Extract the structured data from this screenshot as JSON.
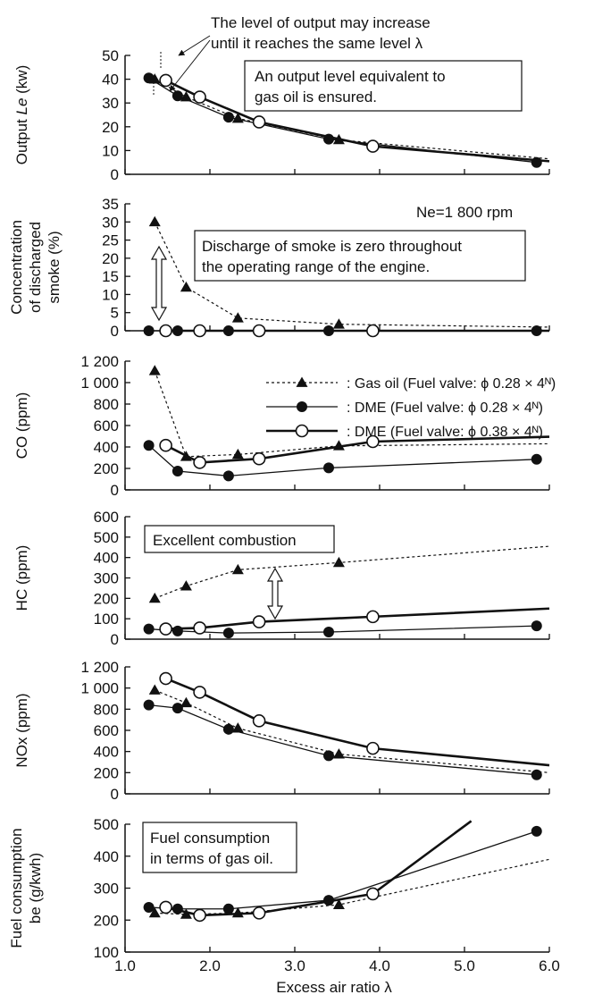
{
  "series_legend": [
    {
      "key": "gas",
      "label": ": Gas oil (Fuel valve: ϕ 0.28 × 4ᴺ)"
    },
    {
      "key": "dme028",
      "label": ": DME (Fuel valve: ϕ 0.28 × 4ᴺ)"
    },
    {
      "key": "dme038",
      "label": ": DME (Fuel valve: ϕ 0.38 × 4ᴺ)"
    }
  ],
  "annotations": {
    "top_note_line1": "The level of output may increase",
    "top_note_line2": "until it reaches the same level λ",
    "output_box_line1": "An output level equivalent to",
    "output_box_line2": "gas oil is ensured.",
    "ne": "Ne=1 800 rpm",
    "smoke_box_line1": "Discharge of smoke is zero throughout",
    "smoke_box_line2": "the operating range of the engine.",
    "hc_box": "Excellent combustion",
    "fuel_box_line1": "Fuel consumption",
    "fuel_box_line2": "in terms of gas oil."
  },
  "xlabel": "Excess air ratio λ",
  "x_tick_labels": [
    "1.0",
    "2.0",
    "3.0",
    "4.0",
    "5.0",
    "6.0"
  ],
  "chart_data": [
    {
      "type": "line",
      "ylabel": "Output Le (kw)",
      "ylim": [
        0,
        50
      ],
      "y_ticks": [
        0,
        10,
        20,
        30,
        40,
        50
      ],
      "y_tick_labels": [
        "0",
        "10",
        "20",
        "30",
        "40",
        "50"
      ],
      "xlim": [
        1.0,
        6.0
      ],
      "series": [
        {
          "key": "gas",
          "marker": "triangle",
          "style": "dotted",
          "x": [
            1.35,
            1.72,
            2.33,
            3.52
          ],
          "y": [
            40,
            32.5,
            23.5,
            14.5
          ],
          "tail": [
            6.0,
            6.5
          ]
        },
        {
          "key": "dme028",
          "marker": "dot",
          "style": "thin",
          "x": [
            1.28,
            1.62,
            2.22,
            3.4,
            5.85
          ],
          "y": [
            40.5,
            33,
            24,
            14.8,
            5
          ],
          "tail": null
        },
        {
          "key": "dme038",
          "marker": "circle",
          "style": "thick",
          "x": [
            1.48,
            1.88,
            2.58,
            3.92
          ],
          "y": [
            39.5,
            32.5,
            22,
            11.8
          ],
          "tail": [
            6.0,
            5.5
          ]
        }
      ]
    },
    {
      "type": "line",
      "ylabel": "Concentration of discharged smoke (%)",
      "ylim": [
        0,
        35
      ],
      "y_ticks": [
        0,
        5,
        10,
        15,
        20,
        25,
        30,
        35
      ],
      "y_tick_labels": [
        "0",
        "5",
        "10",
        "15",
        "20",
        "25",
        "30",
        "35"
      ],
      "xlim": [
        1.0,
        6.0
      ],
      "series": [
        {
          "key": "gas",
          "marker": "triangle",
          "style": "dotted",
          "x": [
            1.35,
            1.72,
            2.33,
            3.52
          ],
          "y": [
            30,
            12,
            3.5,
            1.8
          ],
          "tail": [
            6.0,
            1.0
          ]
        },
        {
          "key": "dme028",
          "marker": "dot",
          "style": "thin",
          "x": [
            1.28,
            1.62,
            2.22,
            3.4,
            5.85
          ],
          "y": [
            0,
            0,
            0,
            0,
            0
          ],
          "tail": null
        },
        {
          "key": "dme038",
          "marker": "circle",
          "style": "thick",
          "x": [
            1.48,
            1.88,
            2.58,
            3.92
          ],
          "y": [
            0,
            0,
            0,
            0
          ],
          "tail": [
            6.0,
            0
          ]
        }
      ]
    },
    {
      "type": "line",
      "ylabel": "CO (ppm)",
      "ylim": [
        0,
        1200
      ],
      "y_ticks": [
        0,
        200,
        400,
        600,
        800,
        1000,
        1200
      ],
      "y_tick_labels": [
        "0",
        "200",
        "400",
        "600",
        "800",
        "1 000",
        "1 200"
      ],
      "xlim": [
        1.0,
        6.0
      ],
      "series": [
        {
          "key": "gas",
          "marker": "triangle",
          "style": "dotted",
          "x": [
            1.35,
            1.72,
            2.33,
            3.52
          ],
          "y": [
            1110,
            310,
            330,
            410
          ],
          "tail": [
            6.0,
            430
          ]
        },
        {
          "key": "dme028",
          "marker": "dot",
          "style": "thin",
          "x": [
            1.28,
            1.62,
            2.22,
            3.4,
            5.85
          ],
          "y": [
            415,
            175,
            130,
            205,
            285
          ],
          "tail": null
        },
        {
          "key": "dme038",
          "marker": "circle",
          "style": "thick",
          "x": [
            1.48,
            1.88,
            2.58,
            3.92
          ],
          "y": [
            415,
            255,
            290,
            450
          ],
          "tail": [
            6.0,
            495
          ]
        }
      ]
    },
    {
      "type": "line",
      "ylabel": "HC (ppm)",
      "ylim": [
        0,
        600
      ],
      "y_ticks": [
        0,
        100,
        200,
        300,
        400,
        500,
        600
      ],
      "y_tick_labels": [
        "0",
        "100",
        "200",
        "300",
        "400",
        "500",
        "600"
      ],
      "xlim": [
        1.0,
        6.0
      ],
      "series": [
        {
          "key": "gas",
          "marker": "triangle",
          "style": "dotted",
          "x": [
            1.35,
            1.72,
            2.33,
            3.52
          ],
          "y": [
            200,
            260,
            340,
            375
          ],
          "tail": [
            6.0,
            455
          ]
        },
        {
          "key": "dme028",
          "marker": "dot",
          "style": "thin",
          "x": [
            1.28,
            1.62,
            2.22,
            3.4,
            5.85
          ],
          "y": [
            50,
            40,
            30,
            35,
            65
          ],
          "tail": null
        },
        {
          "key": "dme038",
          "marker": "circle",
          "style": "thick",
          "x": [
            1.48,
            1.88,
            2.58,
            3.92
          ],
          "y": [
            50,
            55,
            85,
            110
          ],
          "tail": [
            6.0,
            150
          ]
        }
      ]
    },
    {
      "type": "line",
      "ylabel": "NOx (ppm)",
      "ylim": [
        0,
        1200
      ],
      "y_ticks": [
        0,
        200,
        400,
        600,
        800,
        1000,
        1200
      ],
      "y_tick_labels": [
        "0",
        "200",
        "400",
        "600",
        "800",
        "1 000",
        "1 200"
      ],
      "xlim": [
        1.0,
        6.0
      ],
      "series": [
        {
          "key": "gas",
          "marker": "triangle",
          "style": "dotted",
          "x": [
            1.35,
            1.72,
            2.33,
            3.52
          ],
          "y": [
            980,
            860,
            620,
            375
          ],
          "tail": [
            6.0,
            200
          ]
        },
        {
          "key": "dme028",
          "marker": "dot",
          "style": "thin",
          "x": [
            1.28,
            1.62,
            2.22,
            3.4,
            5.85
          ],
          "y": [
            840,
            810,
            610,
            360,
            180
          ],
          "tail": null
        },
        {
          "key": "dme038",
          "marker": "circle",
          "style": "thick",
          "x": [
            1.48,
            1.88,
            2.58,
            3.92
          ],
          "y": [
            1090,
            960,
            690,
            430
          ],
          "tail": [
            6.0,
            270
          ]
        }
      ]
    },
    {
      "type": "line",
      "ylabel": "Fuel consumption be (g/kwh)",
      "ylim": [
        100,
        500
      ],
      "y_ticks": [
        100,
        200,
        300,
        400,
        500
      ],
      "y_tick_labels": [
        "100",
        "200",
        "300",
        "400",
        "500"
      ],
      "xlim": [
        1.0,
        6.0
      ],
      "series": [
        {
          "key": "gas",
          "marker": "triangle",
          "style": "dotted",
          "x": [
            1.35,
            1.72,
            2.33,
            3.52
          ],
          "y": [
            222,
            218,
            222,
            248
          ],
          "tail": [
            6.0,
            390
          ]
        },
        {
          "key": "dme028",
          "marker": "dot",
          "style": "thin",
          "x": [
            1.28,
            1.62,
            2.22,
            3.4,
            5.85
          ],
          "y": [
            240,
            235,
            235,
            262,
            478
          ],
          "tail": null
        },
        {
          "key": "dme038",
          "marker": "circle",
          "style": "thick",
          "x": [
            1.48,
            1.88,
            2.58,
            3.92
          ],
          "y": [
            240,
            215,
            222,
            282
          ],
          "tail": [
            5.08,
            510
          ]
        }
      ]
    }
  ]
}
